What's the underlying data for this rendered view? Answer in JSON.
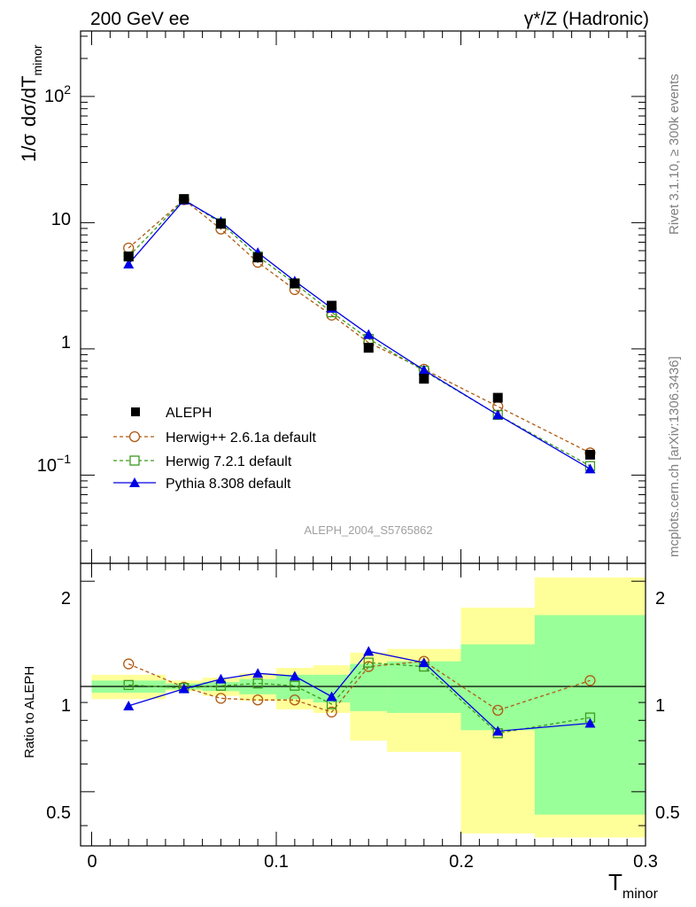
{
  "header": {
    "left_title": "200 GeV ee",
    "right_title_part1": "γ*/Z",
    "right_title_part2": "(Hadronic)"
  },
  "side_text": {
    "rivet": "Rivet 3.1.10, ≥ 300k events",
    "mcplots": "mcplots.cern.ch [arXiv:1306.3436]"
  },
  "watermark": "ALEPH_2004_S5765862",
  "axes": {
    "main_ylabel_parts": [
      "1/σ",
      "dσ/dT",
      "minor"
    ],
    "ratio_ylabel": "Ratio to ALEPH",
    "xlabel_main": "T",
    "xlabel_sub": "minor",
    "x_ticks": [
      "0",
      "0.1",
      "0.2",
      "0.3"
    ],
    "main_y_ticks": [
      {
        "label": "10",
        "sup": "2"
      },
      {
        "label": "10",
        "sup": ""
      },
      {
        "label": "1",
        "sup": ""
      },
      {
        "label": "10",
        "sup": "−1"
      }
    ],
    "ratio_y_ticks": [
      "2",
      "1",
      "0.5"
    ]
  },
  "colors": {
    "aleph": "#000000",
    "herwigpp": "#b05a12",
    "herwig7": "#3c9b1e",
    "pythia": "#0000e6",
    "band_inner": "#99ff99",
    "band_outer": "#ffff99"
  },
  "chart_data": [
    {
      "type": "scatter",
      "title": "ALEPH_2004_S5765862",
      "xlabel": "T_minor",
      "ylabel": "1/σ dσ/dT_minor",
      "yscale": "log",
      "xlim": [
        -0.006,
        0.3
      ],
      "ylim": [
        0.02,
        330
      ],
      "bin_edges": [
        0,
        0.04,
        0.06,
        0.08,
        0.1,
        0.12,
        0.14,
        0.16,
        0.2,
        0.24,
        0.3
      ],
      "x": [
        0.02,
        0.05,
        0.07,
        0.09,
        0.11,
        0.13,
        0.15,
        0.18,
        0.22,
        0.27
      ],
      "series": [
        {
          "name": "ALEPH",
          "marker": "square-filled",
          "line": "none",
          "values": [
            5.4,
            15.4,
            9.8,
            5.3,
            3.3,
            2.2,
            1.02,
            0.58,
            0.41,
            0.145
          ]
        },
        {
          "name": "Herwig++ 2.6.1a default",
          "marker": "circle-open",
          "line": "dashed",
          "values": [
            6.3,
            15.2,
            8.9,
            4.85,
            2.95,
            1.85,
            1.12,
            0.69,
            0.35,
            0.15
          ]
        },
        {
          "name": "Herwig 7.2.1 default",
          "marker": "square-open",
          "line": "dashed",
          "values": [
            5.4,
            15.3,
            9.9,
            5.4,
            3.3,
            1.95,
            1.2,
            0.67,
            0.3,
            0.118
          ]
        },
        {
          "name": "Pythia 8.308 default",
          "marker": "triangle-filled",
          "line": "solid",
          "values": [
            4.7,
            15.1,
            10.2,
            5.8,
            3.45,
            2.1,
            1.3,
            0.68,
            0.3,
            0.112
          ]
        }
      ]
    },
    {
      "type": "scatter",
      "xlabel": "T_minor",
      "ylabel": "Ratio to ALEPH",
      "xlim": [
        -0.006,
        0.3
      ],
      "ylim": [
        0.35,
        2.25
      ],
      "bin_edges": [
        0,
        0.04,
        0.06,
        0.08,
        0.1,
        0.12,
        0.14,
        0.16,
        0.2,
        0.24,
        0.3
      ],
      "x": [
        0.02,
        0.05,
        0.07,
        0.09,
        0.11,
        0.13,
        0.15,
        0.18,
        0.22,
        0.27
      ],
      "reference": 1,
      "bands": [
        {
          "name": "stat uncertainty",
          "lo": [
            0.96,
            0.98,
            0.97,
            0.95,
            0.92,
            0.9,
            0.85,
            0.84,
            0.75,
            0.43
          ],
          "hi": [
            1.04,
            1.02,
            1.03,
            1.05,
            1.08,
            1.08,
            1.16,
            1.18,
            1.32,
            1.6
          ]
        },
        {
          "name": "total uncertainty",
          "lo": [
            0.92,
            0.97,
            0.94,
            0.91,
            0.86,
            0.84,
            0.7,
            0.65,
            0.38,
            0.37
          ],
          "hi": [
            1.08,
            1.04,
            1.06,
            1.09,
            1.13,
            1.15,
            1.25,
            1.28,
            1.68,
            2.05
          ]
        }
      ],
      "series": [
        {
          "name": "Herwig++ 2.6.1a default",
          "marker": "circle-open",
          "line": "dashed",
          "values": [
            1.16,
            0.995,
            0.925,
            0.915,
            0.915,
            0.845,
            1.14,
            1.18,
            0.855,
            1.04
          ]
        },
        {
          "name": "Herwig 7.2.1 default",
          "marker": "square-open",
          "line": "dashed",
          "values": [
            1.01,
            0.99,
            1.005,
            1.02,
            1.005,
            0.89,
            1.17,
            1.14,
            0.735,
            0.815
          ]
        },
        {
          "name": "Pythia 8.308 default",
          "marker": "triangle-filled",
          "line": "solid",
          "values": [
            0.88,
            0.985,
            1.05,
            1.09,
            1.07,
            0.935,
            1.26,
            1.17,
            0.745,
            0.785
          ]
        }
      ]
    }
  ]
}
